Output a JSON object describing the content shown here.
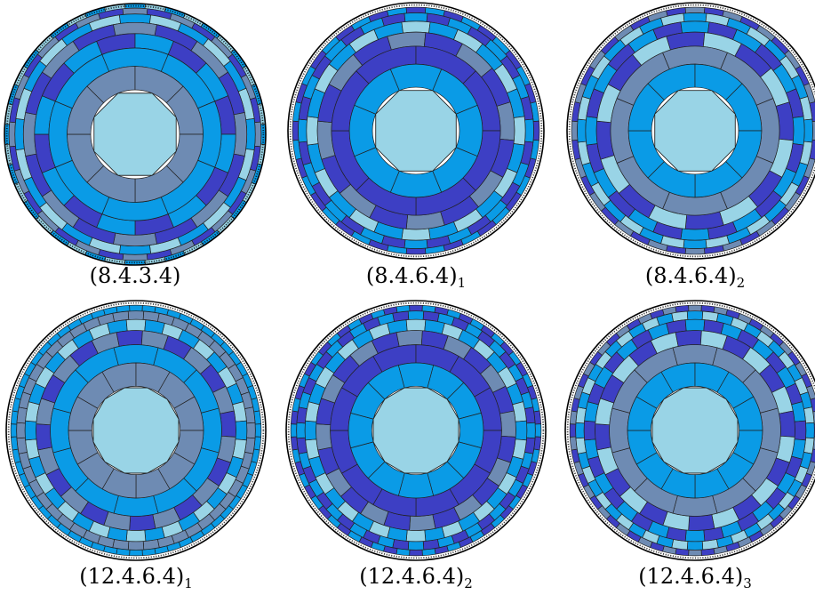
{
  "figure": {
    "palette": {
      "center": "#99D4E6",
      "bright": "#0A9BE6",
      "dark": "#3D3FC4",
      "steel": "#6E8BB3",
      "outline": "#222222",
      "rim": "#000000",
      "background": "#FFFFFF"
    },
    "tilings": [
      {
        "base": "(8.4.3.4)",
        "subscript": "",
        "polygon": 8,
        "rings": [
          {
            "fill": "steel",
            "n": 8,
            "offset": 0.5
          },
          {
            "fill": "bright",
            "n": 8,
            "offset": 0
          },
          {
            "fill": "dark",
            "n": 16,
            "offset": 0
          },
          {
            "fill": "steel",
            "n": 16,
            "offset": 0.5
          },
          {
            "fill": "bright",
            "n": 24,
            "offset": 0
          },
          {
            "fill": "dark",
            "n": 32,
            "offset": 0.5
          },
          {
            "fill": "center",
            "n": 40,
            "offset": 0
          }
        ]
      },
      {
        "base": "(8.4.6.4)",
        "subscript": "1",
        "polygon": 8,
        "rings": [
          {
            "fill": "bright",
            "n": 8,
            "offset": 0
          },
          {
            "fill": "dark",
            "n": 8,
            "offset": 0.5
          },
          {
            "fill": "steel",
            "n": 16,
            "offset": 0.25
          },
          {
            "fill": "center",
            "n": 24,
            "offset": 0
          },
          {
            "fill": "dark",
            "n": 32,
            "offset": 0.5
          },
          {
            "fill": "bright",
            "n": 40,
            "offset": 0
          }
        ]
      },
      {
        "base": "(8.4.6.4)",
        "subscript": "2",
        "polygon": 8,
        "rings": [
          {
            "fill": "bright",
            "n": 8,
            "offset": 0.5
          },
          {
            "fill": "steel",
            "n": 8,
            "offset": 0
          },
          {
            "fill": "dark",
            "n": 16,
            "offset": 0.25
          },
          {
            "fill": "bright",
            "n": 24,
            "offset": 0
          },
          {
            "fill": "center",
            "n": 32,
            "offset": 0.5
          },
          {
            "fill": "dark",
            "n": 40,
            "offset": 0
          }
        ]
      },
      {
        "base": "(12.4.6.4)",
        "subscript": "1",
        "polygon": 12,
        "rings": [
          {
            "fill": "steel",
            "n": 12,
            "offset": 0.5
          },
          {
            "fill": "bright",
            "n": 12,
            "offset": 0
          },
          {
            "fill": "dark",
            "n": 24,
            "offset": 0.25
          },
          {
            "fill": "center",
            "n": 36,
            "offset": 0
          },
          {
            "fill": "steel",
            "n": 48,
            "offset": 0.5
          },
          {
            "fill": "bright",
            "n": 60,
            "offset": 0
          }
        ]
      },
      {
        "base": "(12.4.6.4)",
        "subscript": "2",
        "polygon": 12,
        "rings": [
          {
            "fill": "bright",
            "n": 12,
            "offset": 0
          },
          {
            "fill": "dark",
            "n": 12,
            "offset": 0.5
          },
          {
            "fill": "steel",
            "n": 24,
            "offset": 0.25
          },
          {
            "fill": "center",
            "n": 36,
            "offset": 0
          },
          {
            "fill": "dark",
            "n": 48,
            "offset": 0.5
          },
          {
            "fill": "bright",
            "n": 60,
            "offset": 0
          }
        ]
      },
      {
        "base": "(12.4.6.4)",
        "subscript": "3",
        "polygon": 12,
        "rings": [
          {
            "fill": "bright",
            "n": 12,
            "offset": 0.5
          },
          {
            "fill": "steel",
            "n": 12,
            "offset": 0
          },
          {
            "fill": "dark",
            "n": 24,
            "offset": 0.25
          },
          {
            "fill": "bright",
            "n": 36,
            "offset": 0
          },
          {
            "fill": "center",
            "n": 48,
            "offset": 0.5
          },
          {
            "fill": "dark",
            "n": 60,
            "offset": 0
          }
        ]
      }
    ]
  }
}
